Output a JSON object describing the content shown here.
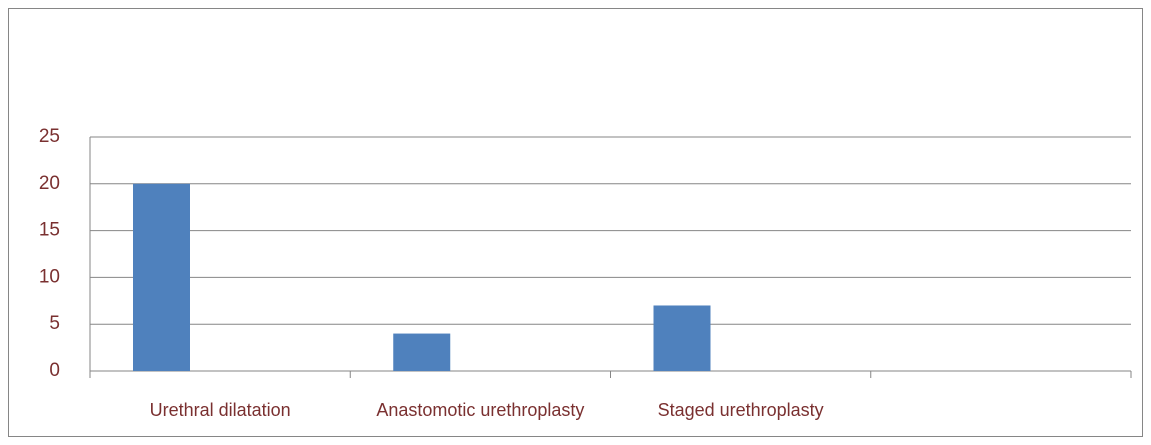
{
  "chart_data": {
    "type": "bar",
    "categories": [
      "Urethral dilatation",
      "Anastomotic urethroplasty",
      "Staged urethroplasty",
      null
    ],
    "values": [
      20,
      4,
      7,
      null
    ],
    "color": "#4f81bd",
    "ylim": [
      0,
      25
    ],
    "yticks": [
      0,
      5,
      10,
      15,
      20,
      25
    ],
    "grid": true
  }
}
